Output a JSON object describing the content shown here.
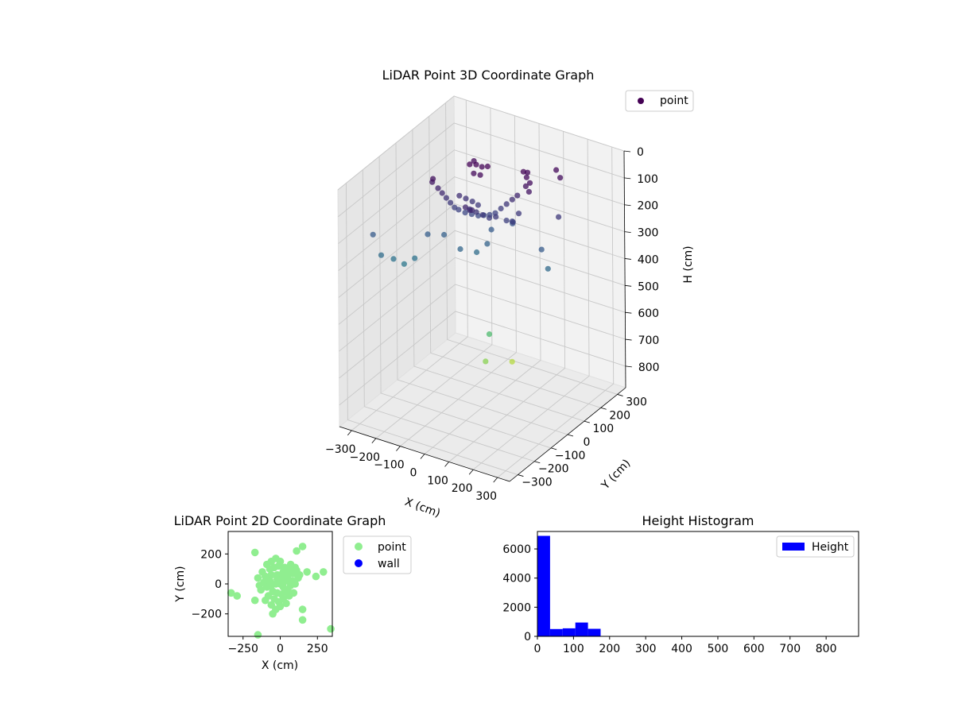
{
  "chart_data": [
    {
      "type": "scatter3d",
      "title": "LiDAR Point 3D Coordinate Graph",
      "xlabel": "X (cm)",
      "ylabel": "Y (cm)",
      "zlabel": "H (cm)",
      "xlim": [
        -350,
        350
      ],
      "ylim": [
        -350,
        350
      ],
      "zlim": [
        0,
        880
      ],
      "z_inverted": true,
      "xticks": [
        -300,
        -200,
        -100,
        0,
        100,
        200,
        300
      ],
      "yticks": [
        300,
        200,
        100,
        0,
        -100,
        -200,
        -300
      ],
      "zticks": [
        0,
        100,
        200,
        300,
        400,
        500,
        600,
        700,
        800
      ],
      "colormap": "viridis",
      "color_range": [
        0,
        880
      ],
      "legend": [
        "point"
      ],
      "legend_colors": [
        "#440154"
      ],
      "points": [
        {
          "x": -60,
          "y": 20,
          "h": 5
        },
        {
          "x": -40,
          "y": 30,
          "h": 5
        },
        {
          "x": -20,
          "y": 35,
          "h": 10
        },
        {
          "x": 0,
          "y": 40,
          "h": 5
        },
        {
          "x": -30,
          "y": 0,
          "h": 20
        },
        {
          "x": -10,
          "y": 10,
          "h": 25
        },
        {
          "x": -70,
          "y": 60,
          "h": 15
        },
        {
          "x": 120,
          "y": 80,
          "h": 10
        },
        {
          "x": 140,
          "y": 70,
          "h": 20
        },
        {
          "x": 160,
          "y": 60,
          "h": 30
        },
        {
          "x": 130,
          "y": 90,
          "h": 15
        },
        {
          "x": 150,
          "y": 50,
          "h": 40
        },
        {
          "x": 170,
          "y": 40,
          "h": 50
        },
        {
          "x": -150,
          "y": -40,
          "h": 90
        },
        {
          "x": -140,
          "y": -30,
          "h": 110
        },
        {
          "x": -130,
          "y": -20,
          "h": 130
        },
        {
          "x": -120,
          "y": -10,
          "h": 150
        },
        {
          "x": -110,
          "y": 0,
          "h": 170
        },
        {
          "x": -100,
          "y": 10,
          "h": 180
        },
        {
          "x": -80,
          "y": 20,
          "h": 190
        },
        {
          "x": -60,
          "y": 30,
          "h": 195
        },
        {
          "x": -40,
          "y": 40,
          "h": 200
        },
        {
          "x": -20,
          "y": 45,
          "h": 195
        },
        {
          "x": 0,
          "y": 50,
          "h": 190
        },
        {
          "x": 20,
          "y": 55,
          "h": 180
        },
        {
          "x": 40,
          "y": 60,
          "h": 160
        },
        {
          "x": 60,
          "y": 65,
          "h": 140
        },
        {
          "x": 80,
          "y": 70,
          "h": 120
        },
        {
          "x": 100,
          "y": 72,
          "h": 100
        },
        {
          "x": -90,
          "y": 0,
          "h": 120
        },
        {
          "x": -70,
          "y": 10,
          "h": 130
        },
        {
          "x": -50,
          "y": 20,
          "h": 140
        },
        {
          "x": -30,
          "y": 25,
          "h": 150
        },
        {
          "x": -20,
          "y": -40,
          "h": 130
        },
        {
          "x": 0,
          "y": -30,
          "h": 140
        },
        {
          "x": 20,
          "y": -20,
          "h": 150
        },
        {
          "x": 40,
          "y": -10,
          "h": 160
        },
        {
          "x": 60,
          "y": 0,
          "h": 155
        },
        {
          "x": -10,
          "y": -80,
          "h": 100
        },
        {
          "x": 10,
          "y": -70,
          "h": 110
        },
        {
          "x": -5,
          "y": -60,
          "h": 120
        },
        {
          "x": -160,
          "y": -60,
          "h": 60
        },
        {
          "x": -150,
          "y": -70,
          "h": 40
        },
        {
          "x": 90,
          "y": 20,
          "h": 170
        },
        {
          "x": 110,
          "y": 30,
          "h": 175
        },
        {
          "x": 120,
          "y": 50,
          "h": 150
        },
        {
          "x": 100,
          "y": 40,
          "h": 180
        },
        {
          "x": 200,
          "y": 160,
          "h": 20
        },
        {
          "x": 230,
          "y": 140,
          "h": 30
        },
        {
          "x": 250,
          "y": 100,
          "h": 150
        },
        {
          "x": 220,
          "y": 40,
          "h": 250
        },
        {
          "x": 260,
          "y": 20,
          "h": 300
        },
        {
          "x": -290,
          "y": -180,
          "h": 310
        },
        {
          "x": -260,
          "y": -150,
          "h": 330
        },
        {
          "x": -230,
          "y": -130,
          "h": 350
        },
        {
          "x": -200,
          "y": -110,
          "h": 330
        },
        {
          "x": -330,
          "y": -170,
          "h": 250
        },
        {
          "x": -180,
          "y": -60,
          "h": 260
        },
        {
          "x": -140,
          "y": -20,
          "h": 270
        },
        {
          "x": -60,
          "y": -40,
          "h": 290
        },
        {
          "x": -20,
          "y": 0,
          "h": 310
        },
        {
          "x": 10,
          "y": 20,
          "h": 280
        },
        {
          "x": 0,
          "y": 60,
          "h": 250
        },
        {
          "x": 60,
          "y": 100,
          "h": 230
        },
        {
          "x": 30,
          "y": 0,
          "h": 600
        },
        {
          "x": 0,
          "y": 20,
          "h": 720
        },
        {
          "x": 20,
          "y": 150,
          "h": 780
        }
      ]
    },
    {
      "type": "scatter",
      "title": "LiDAR Point 2D Coordinate Graph",
      "xlabel": "X (cm)",
      "ylabel": "Y (cm)",
      "xlim": [
        -350,
        350
      ],
      "ylim": [
        -350,
        350
      ],
      "xticks": [
        -250,
        0,
        250
      ],
      "yticks": [
        200,
        0,
        -200
      ],
      "legend": [
        "point",
        "wall"
      ],
      "legend_colors": [
        "#90ee90",
        "#0000ff"
      ],
      "series": [
        {
          "name": "point",
          "color": "#90ee90",
          "points": [
            [
              -170,
              210
            ],
            [
              150,
              250
            ],
            [
              110,
              220
            ],
            [
              -330,
              -60
            ],
            [
              -290,
              -80
            ],
            [
              -170,
              -110
            ],
            [
              -150,
              -340
            ],
            [
              150,
              -170
            ],
            [
              150,
              -240
            ],
            [
              340,
              -300
            ],
            [
              290,
              80
            ],
            [
              240,
              50
            ],
            [
              180,
              80
            ],
            [
              -90,
              130
            ],
            [
              -60,
              150
            ],
            [
              -30,
              170
            ],
            [
              0,
              150
            ],
            [
              30,
              110
            ],
            [
              60,
              90
            ],
            [
              90,
              70
            ],
            [
              120,
              40
            ],
            [
              -70,
              100
            ],
            [
              -40,
              110
            ],
            [
              -10,
              120
            ],
            [
              20,
              80
            ],
            [
              50,
              50
            ],
            [
              80,
              20
            ],
            [
              100,
              0
            ],
            [
              -60,
              60
            ],
            [
              -20,
              60
            ],
            [
              10,
              40
            ],
            [
              40,
              20
            ],
            [
              70,
              -10
            ],
            [
              -100,
              50
            ],
            [
              -110,
              10
            ],
            [
              -90,
              -20
            ],
            [
              -60,
              -10
            ],
            [
              -30,
              0
            ],
            [
              0,
              0
            ],
            [
              20,
              -20
            ],
            [
              50,
              -40
            ],
            [
              -50,
              -50
            ],
            [
              -20,
              -60
            ],
            [
              10,
              -70
            ],
            [
              -80,
              -80
            ],
            [
              -40,
              -100
            ],
            [
              -10,
              -120
            ],
            [
              20,
              -100
            ],
            [
              -60,
              -140
            ],
            [
              -30,
              -170
            ],
            [
              -50,
              -200
            ],
            [
              -130,
              -40
            ],
            [
              -140,
              -10
            ],
            [
              -120,
              80
            ],
            [
              70,
              130
            ],
            [
              100,
              110
            ],
            [
              130,
              60
            ],
            [
              -100,
              -110
            ],
            [
              60,
              -80
            ],
            [
              90,
              -60
            ],
            [
              40,
              -130
            ],
            [
              0,
              -150
            ],
            [
              -150,
              40
            ],
            [
              110,
              90
            ],
            [
              -20,
              30
            ],
            [
              30,
              -50
            ],
            [
              -70,
              20
            ],
            [
              60,
              70
            ]
          ]
        },
        {
          "name": "wall",
          "color": "#0000ff",
          "points": []
        }
      ]
    },
    {
      "type": "bar",
      "title": "Height Histogram",
      "xlabel": "",
      "ylabel": "",
      "xlim": [
        0,
        890
      ],
      "ylim": [
        0,
        7200
      ],
      "xticks": [
        0,
        100,
        200,
        300,
        400,
        500,
        600,
        700,
        800
      ],
      "yticks": [
        0,
        2000,
        4000,
        6000
      ],
      "legend": [
        "Height"
      ],
      "legend_colors": [
        "#0000ff"
      ],
      "bin_width": 35,
      "bin_starts": [
        0,
        35,
        70,
        105,
        140
      ],
      "values": [
        6900,
        500,
        550,
        950,
        520
      ],
      "series": [
        {
          "name": "Height",
          "color": "#0000ff"
        }
      ]
    }
  ]
}
